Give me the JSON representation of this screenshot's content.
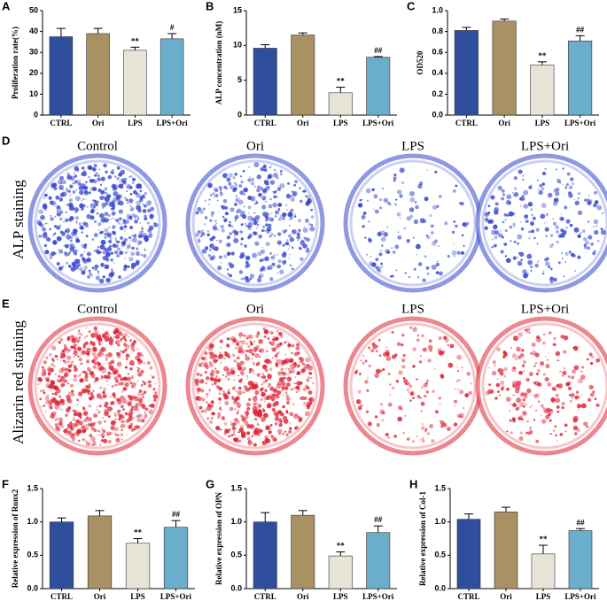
{
  "chart_data": [
    {
      "type": "bar",
      "label": "A",
      "y_label": "Proliferation rate(%)",
      "categories": [
        "CTRL",
        "Ori",
        "LPS",
        "LPS+Ori"
      ],
      "values": [
        37.5,
        39,
        31,
        36.5
      ],
      "errors": [
        4,
        2.5,
        1.5,
        2.5
      ],
      "colors": [
        "#2f4f9e",
        "#a89163",
        "#e8e4d8",
        "#6aaecb"
      ],
      "annotations": [
        null,
        null,
        "**",
        "#"
      ],
      "ylim": [
        0,
        50
      ],
      "yticks": [
        0,
        10,
        20,
        30,
        40,
        50
      ]
    },
    {
      "type": "bar",
      "label": "B",
      "y_label": "ALP concentration (nM)",
      "categories": [
        "CTRL",
        "Ori",
        "LPS",
        "LPS+Ori"
      ],
      "values": [
        9.6,
        11.5,
        3.2,
        8.3
      ],
      "errors": [
        0.5,
        0.3,
        0.8,
        0.1
      ],
      "colors": [
        "#2f4f9e",
        "#a89163",
        "#e8e4d8",
        "#6aaecb"
      ],
      "annotations": [
        null,
        null,
        "**",
        "##"
      ],
      "ylim": [
        0,
        15
      ],
      "yticks": [
        0,
        5,
        10,
        15
      ]
    },
    {
      "type": "bar",
      "label": "C",
      "y_label": "OD520",
      "categories": [
        "CTRL",
        "Ori",
        "LPS",
        "LPS+Ori"
      ],
      "values": [
        0.81,
        0.9,
        0.48,
        0.71
      ],
      "errors": [
        0.03,
        0.02,
        0.03,
        0.05
      ],
      "colors": [
        "#2f4f9e",
        "#a89163",
        "#e8e4d8",
        "#6aaecb"
      ],
      "annotations": [
        null,
        null,
        "**",
        "##"
      ],
      "ylim": [
        0,
        1
      ],
      "yticks": [
        {
          "value": 0,
          "label": "0.0"
        },
        0.2,
        0.4,
        0.6,
        0.8,
        {
          "value": 1,
          "label": "1.0"
        }
      ]
    },
    {
      "type": "bar",
      "label": "F",
      "y_label": "Relative expression of Runx2",
      "categories": [
        "CTRL",
        "Ori",
        "LPS",
        "LPS+Ori"
      ],
      "values": [
        1.0,
        1.09,
        0.68,
        0.92
      ],
      "errors": [
        0.06,
        0.08,
        0.07,
        0.1
      ],
      "colors": [
        "#2f4f9e",
        "#a89163",
        "#e8e4d8",
        "#6aaecb"
      ],
      "annotations": [
        null,
        null,
        "**",
        "##"
      ],
      "ylim": [
        0,
        1.5
      ],
      "yticks": [
        {
          "value": 0,
          "label": "0.0"
        },
        0.5,
        {
          "value": 1,
          "label": "1.0"
        },
        1.5
      ]
    },
    {
      "type": "bar",
      "label": "G",
      "y_label": "Relative expression of OPN",
      "categories": [
        "CTRL",
        "Ori",
        "LPS",
        "LPS+Ori"
      ],
      "values": [
        1.0,
        1.1,
        0.49,
        0.84
      ],
      "errors": [
        0.14,
        0.07,
        0.06,
        0.1
      ],
      "colors": [
        "#2f4f9e",
        "#a89163",
        "#e8e4d8",
        "#6aaecb"
      ],
      "annotations": [
        null,
        null,
        "**",
        "##"
      ],
      "ylim": [
        0,
        1.5
      ],
      "yticks": [
        {
          "value": 0,
          "label": "0.0"
        },
        0.5,
        {
          "value": 1,
          "label": "1.0"
        },
        1.5
      ]
    },
    {
      "type": "bar",
      "label": "H",
      "y_label": "Relative expression of Col-1",
      "categories": [
        "CTRL",
        "Ori",
        "LPS",
        "LPS+Ori"
      ],
      "values": [
        1.04,
        1.15,
        0.52,
        0.87
      ],
      "errors": [
        0.08,
        0.07,
        0.13,
        0.03
      ],
      "colors": [
        "#2f4f9e",
        "#a89163",
        "#e8e4d8",
        "#6aaecb"
      ],
      "annotations": [
        null,
        null,
        "**",
        "##"
      ],
      "ylim": [
        0,
        1.5
      ],
      "yticks": [
        {
          "value": 0,
          "label": "0.0"
        },
        0.5,
        {
          "value": 1,
          "label": "1.0"
        },
        1.5
      ]
    }
  ],
  "staining": [
    {
      "label": "D",
      "title": "ALP staining",
      "color": "#3344cc",
      "groups": [
        "Control",
        "Ori",
        "LPS",
        "LPS+Ori"
      ]
    },
    {
      "label": "E",
      "title": "Alizarin red staining",
      "color": "#dd2233",
      "groups": [
        "Control",
        "Ori",
        "LPS",
        "LPS+Ori"
      ]
    }
  ]
}
